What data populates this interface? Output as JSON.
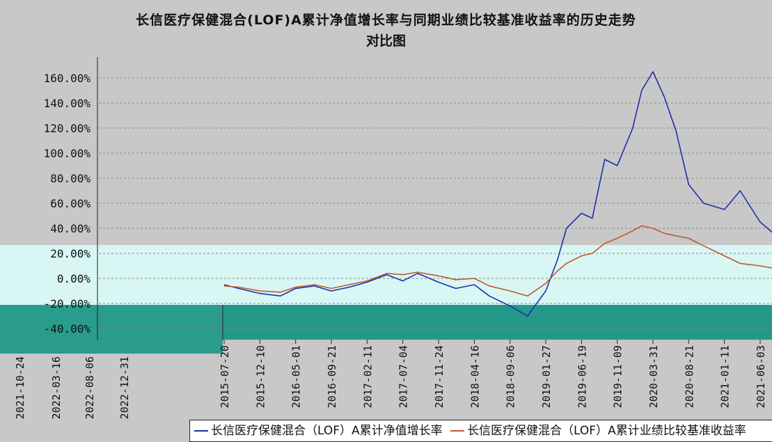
{
  "title": {
    "line1": "长信医疗保健混合(LOF)A累计净值增长率与同期业绩比较基准收益率的历史走势",
    "line2": "对比图"
  },
  "chart_data": {
    "type": "line",
    "ylim": [
      -40,
      170
    ],
    "y_ticks": [
      "160.00%",
      "140.00%",
      "120.00%",
      "100.00%",
      "80.00%",
      "60.00%",
      "40.00%",
      "20.00%",
      "0.00%",
      "-20.00%",
      "-40.00%"
    ],
    "x_ticks": [
      "2015-07-20",
      "2015-12-10",
      "2016-05-01",
      "2016-09-21",
      "2017-02-11",
      "2017-07-04",
      "2017-11-24",
      "2018-04-16",
      "2018-09-06",
      "2019-01-27",
      "2019-06-19",
      "2019-11-09",
      "2020-03-31",
      "2020-08-21",
      "2021-01-11",
      "2021-06-03"
    ],
    "x_ticks_extra": [
      "2021-10-24",
      "2022-03-16",
      "2022-08-06",
      "2022-12-31"
    ],
    "grid": true,
    "legend_position": "bottom",
    "series": [
      {
        "name": "长信医疗保健混合（LOF）A累计净值增长率",
        "color": "#1f2fa8",
        "x": [
          "2015-07-20",
          "2015-09-15",
          "2015-12-10",
          "2016-03-01",
          "2016-05-01",
          "2016-07-15",
          "2016-09-21",
          "2016-12-01",
          "2017-02-11",
          "2017-05-01",
          "2017-07-04",
          "2017-09-01",
          "2017-11-24",
          "2018-02-01",
          "2018-04-16",
          "2018-06-15",
          "2018-09-06",
          "2018-11-15",
          "2019-01-27",
          "2019-03-15",
          "2019-04-20",
          "2019-06-19",
          "2019-08-01",
          "2019-09-20",
          "2019-11-09",
          "2020-01-10",
          "2020-02-15",
          "2020-03-31",
          "2020-05-15",
          "2020-07-01",
          "2020-08-21",
          "2020-10-20",
          "2021-01-11",
          "2021-03-15",
          "2021-06-03",
          "2021-08-01"
        ],
        "values": [
          -5,
          -8,
          -12,
          -14,
          -8,
          -6,
          -10,
          -7,
          -3,
          3,
          -2,
          4,
          -3,
          -8,
          -5,
          -14,
          -22,
          -30,
          -10,
          15,
          40,
          52,
          48,
          95,
          90,
          120,
          150,
          165,
          145,
          118,
          75,
          60,
          55,
          70,
          45,
          35
        ]
      },
      {
        "name": "长信医疗保健混合（LOF）A累计业绩比较基准收益率",
        "color": "#c05a2a",
        "x": [
          "2015-07-20",
          "2015-09-15",
          "2015-12-10",
          "2016-03-01",
          "2016-05-01",
          "2016-07-15",
          "2016-09-21",
          "2016-12-01",
          "2017-02-11",
          "2017-05-01",
          "2017-07-04",
          "2017-09-01",
          "2017-11-24",
          "2018-02-01",
          "2018-04-16",
          "2018-06-15",
          "2018-09-06",
          "2018-11-15",
          "2019-01-27",
          "2019-03-15",
          "2019-04-20",
          "2019-06-19",
          "2019-08-01",
          "2019-09-20",
          "2019-11-09",
          "2020-01-10",
          "2020-02-15",
          "2020-03-31",
          "2020-05-15",
          "2020-07-01",
          "2020-08-21",
          "2020-10-20",
          "2021-01-11",
          "2021-03-15",
          "2021-06-03",
          "2021-08-01"
        ],
        "values": [
          -6,
          -7,
          -10,
          -11,
          -7,
          -5,
          -8,
          -5,
          -2,
          4,
          3,
          5,
          2,
          -1,
          0,
          -6,
          -10,
          -14,
          -4,
          6,
          12,
          18,
          20,
          28,
          32,
          38,
          42,
          40,
          36,
          34,
          32,
          26,
          18,
          12,
          10,
          8
        ]
      }
    ]
  }
}
